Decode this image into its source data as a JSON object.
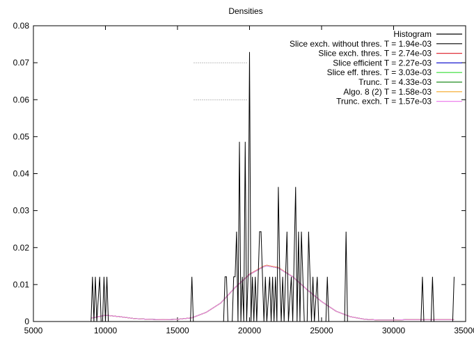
{
  "chart_data": {
    "type": "line",
    "title": "Densities",
    "xlabel": "",
    "ylabel": "",
    "xlim": [
      5000,
      35000
    ],
    "ylim": [
      0,
      0.08
    ],
    "x_ticks": [
      5000,
      10000,
      15000,
      20000,
      25000,
      30000,
      35000
    ],
    "y_ticks": [
      0,
      0.01,
      0.02,
      0.03,
      0.04,
      0.05,
      0.06,
      0.07,
      0.08
    ],
    "x_tick_labels": [
      "5000",
      "10000",
      "15000",
      "20000",
      "25000",
      "30000",
      "35000"
    ],
    "y_tick_labels": [
      "0",
      "0.01",
      "0.02",
      "0.03",
      "0.04",
      "0.05",
      "0.06",
      "0.07",
      "0.08"
    ],
    "grid": false,
    "legend_position": "top-right",
    "histogram": {
      "name": "Histogram",
      "color": "#000000",
      "points": [
        [
          9000,
          0
        ],
        [
          9100,
          0.0121
        ],
        [
          9200,
          0
        ],
        [
          9300,
          0.0121
        ],
        [
          9400,
          0
        ],
        [
          9600,
          0.0121
        ],
        [
          9700,
          0
        ],
        [
          9800,
          0
        ],
        [
          9900,
          0.0121
        ],
        [
          10000,
          0
        ],
        [
          10100,
          0.0121
        ],
        [
          10200,
          0
        ],
        [
          15900,
          0
        ],
        [
          16000,
          0.0121
        ],
        [
          16100,
          0
        ],
        [
          18200,
          0
        ],
        [
          18300,
          0.0121
        ],
        [
          18400,
          0.0121
        ],
        [
          18500,
          0
        ],
        [
          18800,
          0
        ],
        [
          18900,
          0.0121
        ],
        [
          19000,
          0.0121
        ],
        [
          19100,
          0.0243
        ],
        [
          19200,
          0
        ],
        [
          19300,
          0.0486
        ],
        [
          19400,
          0
        ],
        [
          19500,
          0.0121
        ],
        [
          19600,
          0
        ],
        [
          19700,
          0.0486
        ],
        [
          19800,
          0
        ],
        [
          19900,
          0.0121
        ],
        [
          20000,
          0.0729
        ],
        [
          20100,
          0
        ],
        [
          20200,
          0.0121
        ],
        [
          20300,
          0
        ],
        [
          20400,
          0.0121
        ],
        [
          20500,
          0
        ],
        [
          20600,
          0.0121
        ],
        [
          20700,
          0.0243
        ],
        [
          20800,
          0.0243
        ],
        [
          20900,
          0.0121
        ],
        [
          21000,
          0
        ],
        [
          21100,
          0.0121
        ],
        [
          21200,
          0
        ],
        [
          21400,
          0.0121
        ],
        [
          21500,
          0
        ],
        [
          21600,
          0.0121
        ],
        [
          21700,
          0
        ],
        [
          21800,
          0.0121
        ],
        [
          21900,
          0
        ],
        [
          22000,
          0.0364
        ],
        [
          22100,
          0.0121
        ],
        [
          22200,
          0
        ],
        [
          22300,
          0.0121
        ],
        [
          22400,
          0
        ],
        [
          22600,
          0.0243
        ],
        [
          22700,
          0
        ],
        [
          22900,
          0.0121
        ],
        [
          23000,
          0
        ],
        [
          23200,
          0.0364
        ],
        [
          23300,
          0
        ],
        [
          23400,
          0.0243
        ],
        [
          23500,
          0
        ],
        [
          23600,
          0.0243
        ],
        [
          23700,
          0.0121
        ],
        [
          23800,
          0
        ],
        [
          24000,
          0
        ],
        [
          24100,
          0.0243
        ],
        [
          24200,
          0.0121
        ],
        [
          24300,
          0
        ],
        [
          24400,
          0.0121
        ],
        [
          24500,
          0
        ],
        [
          24700,
          0.0121
        ],
        [
          24800,
          0
        ],
        [
          25300,
          0
        ],
        [
          25400,
          0.0121
        ],
        [
          25500,
          0
        ],
        [
          26600,
          0
        ],
        [
          26700,
          0.0243
        ],
        [
          26800,
          0
        ],
        [
          31900,
          0
        ],
        [
          32000,
          0.0121
        ],
        [
          32100,
          0
        ],
        [
          32600,
          0
        ],
        [
          32700,
          0.0121
        ],
        [
          32800,
          0
        ],
        [
          34100,
          0
        ],
        [
          34200,
          0.0121
        ]
      ]
    },
    "series": [
      {
        "name": "Slice exch. without thres. T = 1.94e-03",
        "color": "#000000",
        "points": [
          [
            9000,
            0.0009
          ],
          [
            10000,
            0.0017
          ],
          [
            11000,
            0.0013
          ],
          [
            12000,
            0.0008
          ],
          [
            13000,
            0.0006
          ],
          [
            14000,
            0.0005
          ],
          [
            15000,
            0.0006
          ],
          [
            16000,
            0.001
          ],
          [
            17000,
            0.0025
          ],
          [
            18000,
            0.005
          ],
          [
            19000,
            0.0092
          ],
          [
            20000,
            0.0127
          ],
          [
            21000,
            0.0149
          ],
          [
            21200,
            0.0151
          ],
          [
            22000,
            0.0145
          ],
          [
            23000,
            0.0121
          ],
          [
            24000,
            0.0086
          ],
          [
            25000,
            0.0054
          ],
          [
            26000,
            0.0028
          ],
          [
            27000,
            0.0013
          ],
          [
            28000,
            0.0006
          ],
          [
            29000,
            0.0004
          ],
          [
            30000,
            0.0004
          ],
          [
            31000,
            0.0005
          ],
          [
            32000,
            0.0005
          ],
          [
            33000,
            0.0005
          ],
          [
            34000,
            0.0005
          ],
          [
            34200,
            0.0005
          ]
        ]
      },
      {
        "name": "Slice exch. thres. T = 2.74e-03",
        "color": "#e0303a",
        "points": [
          [
            9000,
            0.0009
          ],
          [
            10000,
            0.0017
          ],
          [
            11000,
            0.0013
          ],
          [
            12000,
            0.0008
          ],
          [
            13000,
            0.0006
          ],
          [
            14000,
            0.0005
          ],
          [
            15000,
            0.0006
          ],
          [
            16000,
            0.001
          ],
          [
            17000,
            0.0025
          ],
          [
            18000,
            0.005
          ],
          [
            19000,
            0.0092
          ],
          [
            20000,
            0.0128
          ],
          [
            21000,
            0.015
          ],
          [
            21200,
            0.0152
          ],
          [
            22000,
            0.0146
          ],
          [
            23000,
            0.0121
          ],
          [
            24000,
            0.0086
          ],
          [
            25000,
            0.0054
          ],
          [
            26000,
            0.0028
          ],
          [
            27000,
            0.0013
          ],
          [
            28000,
            0.0006
          ],
          [
            29000,
            0.0004
          ],
          [
            30000,
            0.0004
          ],
          [
            31000,
            0.0005
          ],
          [
            32000,
            0.0005
          ],
          [
            33000,
            0.0005
          ],
          [
            34000,
            0.0005
          ],
          [
            34200,
            0.0005
          ]
        ]
      },
      {
        "name": "Slice efficient T = 2.27e-03",
        "color": "#1a1ad0",
        "points": [
          [
            9000,
            0.0009
          ],
          [
            10000,
            0.0017
          ],
          [
            11000,
            0.0013
          ],
          [
            12000,
            0.0008
          ],
          [
            13000,
            0.0006
          ],
          [
            14000,
            0.0005
          ],
          [
            15000,
            0.0006
          ],
          [
            16000,
            0.001
          ],
          [
            17000,
            0.0025
          ],
          [
            18000,
            0.005
          ],
          [
            19000,
            0.0092
          ],
          [
            20000,
            0.0127
          ],
          [
            21000,
            0.0149
          ],
          [
            21200,
            0.0151
          ],
          [
            22000,
            0.0145
          ],
          [
            23000,
            0.0121
          ],
          [
            24000,
            0.0086
          ],
          [
            25000,
            0.0054
          ],
          [
            26000,
            0.0028
          ],
          [
            27000,
            0.0013
          ],
          [
            28000,
            0.0006
          ],
          [
            29000,
            0.0004
          ],
          [
            30000,
            0.0004
          ],
          [
            31000,
            0.0005
          ],
          [
            32000,
            0.0005
          ],
          [
            33000,
            0.0005
          ],
          [
            34000,
            0.0005
          ],
          [
            34200,
            0.0005
          ]
        ]
      },
      {
        "name": "Slice eff. thres. T = 3.03e-03",
        "color": "#33dd33",
        "points": [
          [
            9000,
            0.0009
          ],
          [
            10000,
            0.0017
          ],
          [
            11000,
            0.0013
          ],
          [
            12000,
            0.0008
          ],
          [
            13000,
            0.0006
          ],
          [
            14000,
            0.0005
          ],
          [
            15000,
            0.0006
          ],
          [
            16000,
            0.001
          ],
          [
            17000,
            0.0025
          ],
          [
            18000,
            0.005
          ],
          [
            19000,
            0.0092
          ],
          [
            20000,
            0.0127
          ],
          [
            21000,
            0.0149
          ],
          [
            21200,
            0.0151
          ],
          [
            22000,
            0.0145
          ],
          [
            23000,
            0.0121
          ],
          [
            24000,
            0.0086
          ],
          [
            25000,
            0.0054
          ],
          [
            26000,
            0.0028
          ],
          [
            27000,
            0.0013
          ],
          [
            28000,
            0.0006
          ],
          [
            29000,
            0.0004
          ],
          [
            30000,
            0.0004
          ],
          [
            31000,
            0.0005
          ],
          [
            32000,
            0.0005
          ],
          [
            33000,
            0.0005
          ],
          [
            34000,
            0.0005
          ],
          [
            34200,
            0.0005
          ]
        ]
      },
      {
        "name": "Trunc. T = 4.33e-03",
        "color": "#1f8a1f",
        "points": [
          [
            9000,
            0.0009
          ],
          [
            10000,
            0.0017
          ],
          [
            11000,
            0.0013
          ],
          [
            12000,
            0.0008
          ],
          [
            13000,
            0.0006
          ],
          [
            14000,
            0.0005
          ],
          [
            15000,
            0.0006
          ],
          [
            16000,
            0.001
          ],
          [
            17000,
            0.0025
          ],
          [
            18000,
            0.005
          ],
          [
            19000,
            0.0092
          ],
          [
            20000,
            0.0127
          ],
          [
            21000,
            0.0149
          ],
          [
            21200,
            0.0151
          ],
          [
            22000,
            0.0145
          ],
          [
            23000,
            0.0121
          ],
          [
            24000,
            0.0086
          ],
          [
            25000,
            0.0054
          ],
          [
            26000,
            0.0028
          ],
          [
            27000,
            0.0013
          ],
          [
            28000,
            0.0006
          ],
          [
            29000,
            0.0004
          ],
          [
            30000,
            0.0004
          ],
          [
            31000,
            0.0005
          ],
          [
            32000,
            0.0005
          ],
          [
            33000,
            0.0005
          ],
          [
            34000,
            0.0005
          ],
          [
            34200,
            0.0005
          ]
        ]
      },
      {
        "name": "Algo. 8 (2) T = 1.58e-03",
        "color": "#f5a623",
        "points": [
          [
            9000,
            0.0009
          ],
          [
            10000,
            0.0017
          ],
          [
            11000,
            0.0013
          ],
          [
            12000,
            0.0008
          ],
          [
            13000,
            0.0006
          ],
          [
            14000,
            0.0005
          ],
          [
            15000,
            0.0006
          ],
          [
            16000,
            0.001
          ],
          [
            17000,
            0.0025
          ],
          [
            18000,
            0.005
          ],
          [
            19000,
            0.0092
          ],
          [
            20000,
            0.0127
          ],
          [
            21000,
            0.015
          ],
          [
            21200,
            0.0152
          ],
          [
            22000,
            0.0146
          ],
          [
            23000,
            0.0121
          ],
          [
            24000,
            0.0086
          ],
          [
            25000,
            0.0054
          ],
          [
            26000,
            0.0028
          ],
          [
            27000,
            0.0013
          ],
          [
            28000,
            0.0006
          ],
          [
            29000,
            0.0004
          ],
          [
            30000,
            0.0004
          ],
          [
            31000,
            0.0005
          ],
          [
            32000,
            0.0005
          ],
          [
            33000,
            0.0005
          ],
          [
            34000,
            0.0005
          ],
          [
            34200,
            0.0005
          ]
        ]
      },
      {
        "name": "Trunc. exch. T = 1.57e-03",
        "color": "#ee82ee",
        "points": [
          [
            9000,
            0.0009
          ],
          [
            10000,
            0.0017
          ],
          [
            11000,
            0.0013
          ],
          [
            12000,
            0.0008
          ],
          [
            13000,
            0.0006
          ],
          [
            14000,
            0.0005
          ],
          [
            15000,
            0.0006
          ],
          [
            16000,
            0.001
          ],
          [
            17000,
            0.0025
          ],
          [
            18000,
            0.005
          ],
          [
            19000,
            0.0092
          ],
          [
            20000,
            0.0127
          ],
          [
            21000,
            0.0149
          ],
          [
            21200,
            0.0151
          ],
          [
            22000,
            0.0145
          ],
          [
            23000,
            0.0121
          ],
          [
            24000,
            0.0086
          ],
          [
            25000,
            0.0054
          ],
          [
            26000,
            0.0028
          ],
          [
            27000,
            0.0013
          ],
          [
            28000,
            0.0006
          ],
          [
            29000,
            0.0004
          ],
          [
            30000,
            0.0004
          ],
          [
            31000,
            0.0005
          ],
          [
            32000,
            0.0005
          ],
          [
            33000,
            0.0005
          ],
          [
            34000,
            0.0005
          ],
          [
            34200,
            0.0005
          ]
        ]
      }
    ]
  }
}
